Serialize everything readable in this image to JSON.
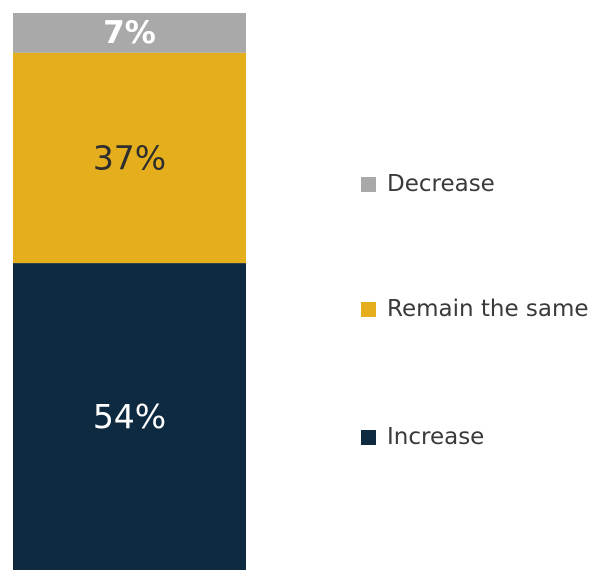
{
  "chart_data": {
    "type": "bar",
    "stacked": true,
    "orientation": "vertical",
    "categories": [
      ""
    ],
    "series": [
      {
        "name": "Increase",
        "values": [
          54
        ],
        "color": "#0d2a40",
        "label": "54%",
        "label_color": "#ffffff"
      },
      {
        "name": "Remain the same",
        "values": [
          37
        ],
        "color": "#e5ae1c",
        "label": "37%",
        "label_color": "#2e2e2e"
      },
      {
        "name": "Decrease",
        "values": [
          7
        ],
        "color": "#a9a9a9",
        "label": "7%",
        "label_color": "#ffffff"
      }
    ],
    "ylim": [
      0,
      98
    ],
    "grid": false,
    "legend_placement": "right",
    "legend_order": [
      "Decrease",
      "Remain the same",
      "Increase"
    ]
  }
}
